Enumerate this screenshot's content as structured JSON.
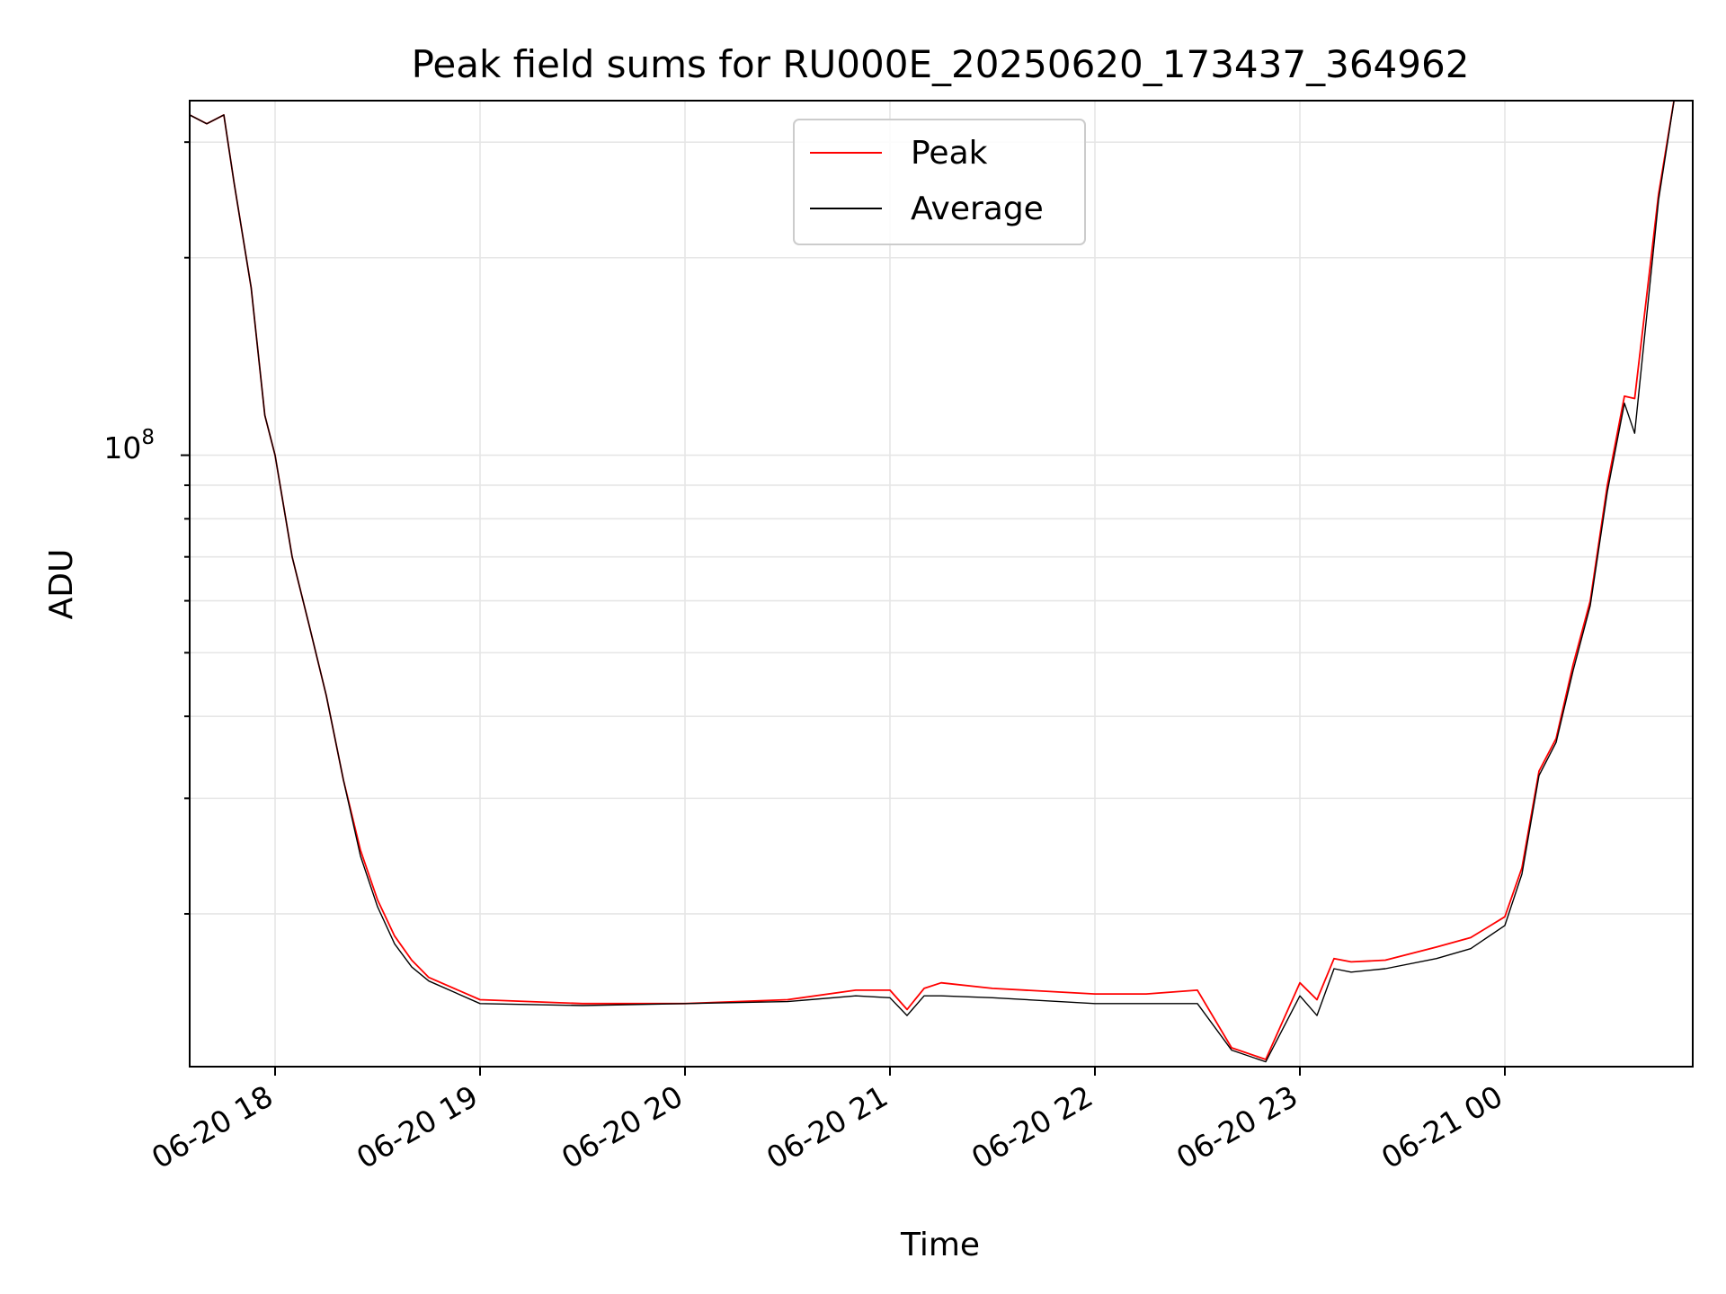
{
  "chart_data": {
    "type": "line",
    "title": "Peak field sums for RU000E_20250620_173437_364962",
    "xlabel": "Time",
    "ylabel": "ADU",
    "y_scale": "log",
    "y_tick_base": "10",
    "y_tick_exponent": "8",
    "ylim": [
      11700000,
      347000000
    ],
    "xlim": [
      "2025-06-20 17:35",
      "2025-06-21 00:55"
    ],
    "x_tick_labels": [
      "06-20 18",
      "06-20 19",
      "06-20 20",
      "06-20 21",
      "06-20 22",
      "06-20 23",
      "06-21 00"
    ],
    "x_tick_values": [
      "2025-06-20 18:00",
      "2025-06-20 19:00",
      "2025-06-20 20:00",
      "2025-06-20 21:00",
      "2025-06-20 22:00",
      "2025-06-20 23:00",
      "2025-06-21 00:00"
    ],
    "grid": true,
    "legend": "upper center",
    "series": [
      {
        "name": "Peak",
        "color": "#ff0000",
        "x": [
          "2025-06-20 17:35",
          "2025-06-20 17:40",
          "2025-06-20 17:45",
          "2025-06-20 17:48",
          "2025-06-20 17:53",
          "2025-06-20 17:57",
          "2025-06-20 18:00",
          "2025-06-20 18:05",
          "2025-06-20 18:10",
          "2025-06-20 18:15",
          "2025-06-20 18:20",
          "2025-06-20 18:25",
          "2025-06-20 18:30",
          "2025-06-20 18:35",
          "2025-06-20 18:40",
          "2025-06-20 18:45",
          "2025-06-20 19:00",
          "2025-06-20 19:30",
          "2025-06-20 20:00",
          "2025-06-20 20:30",
          "2025-06-20 20:50",
          "2025-06-20 21:00",
          "2025-06-20 21:05",
          "2025-06-20 21:10",
          "2025-06-20 21:15",
          "2025-06-20 21:30",
          "2025-06-20 22:00",
          "2025-06-20 22:15",
          "2025-06-20 22:30",
          "2025-06-20 22:40",
          "2025-06-20 22:50",
          "2025-06-20 23:00",
          "2025-06-20 23:05",
          "2025-06-20 23:10",
          "2025-06-20 23:15",
          "2025-06-20 23:25",
          "2025-06-20 23:40",
          "2025-06-20 23:50",
          "2025-06-21 00:00",
          "2025-06-21 00:05",
          "2025-06-21 00:10",
          "2025-06-21 00:15",
          "2025-06-21 00:20",
          "2025-06-21 00:25",
          "2025-06-21 00:30",
          "2025-06-21 00:35",
          "2025-06-21 00:38",
          "2025-06-21 00:45",
          "2025-06-21 00:50"
        ],
        "y": [
          330000000,
          320000000,
          330000000,
          260000000,
          180000000,
          115000000,
          100000000,
          70000000,
          55000000,
          43000000,
          32000000,
          25000000,
          21000000,
          18500000,
          17000000,
          16000000,
          14800000,
          14600000,
          14600000,
          14800000,
          15300000,
          15300000,
          14300000,
          15400000,
          15700000,
          15400000,
          15100000,
          15100000,
          15300000,
          12500000,
          12000000,
          15700000,
          14800000,
          17100000,
          16900000,
          17000000,
          17800000,
          18400000,
          19800000,
          23500000,
          33000000,
          37000000,
          48000000,
          60000000,
          90000000,
          123000000,
          122000000,
          250000000,
          360000000
        ]
      },
      {
        "name": "Average",
        "color": "#000000",
        "x": [
          "2025-06-20 17:35",
          "2025-06-20 17:40",
          "2025-06-20 17:45",
          "2025-06-20 17:48",
          "2025-06-20 17:53",
          "2025-06-20 17:57",
          "2025-06-20 18:00",
          "2025-06-20 18:05",
          "2025-06-20 18:10",
          "2025-06-20 18:15",
          "2025-06-20 18:20",
          "2025-06-20 18:25",
          "2025-06-20 18:30",
          "2025-06-20 18:35",
          "2025-06-20 18:40",
          "2025-06-20 18:45",
          "2025-06-20 19:00",
          "2025-06-20 19:30",
          "2025-06-20 20:00",
          "2025-06-20 20:30",
          "2025-06-20 20:50",
          "2025-06-20 21:00",
          "2025-06-20 21:05",
          "2025-06-20 21:10",
          "2025-06-20 21:15",
          "2025-06-20 21:30",
          "2025-06-20 22:00",
          "2025-06-20 22:15",
          "2025-06-20 22:30",
          "2025-06-20 22:40",
          "2025-06-20 22:50",
          "2025-06-20 23:00",
          "2025-06-20 23:05",
          "2025-06-20 23:10",
          "2025-06-20 23:15",
          "2025-06-20 23:25",
          "2025-06-20 23:40",
          "2025-06-20 23:50",
          "2025-06-21 00:00",
          "2025-06-21 00:05",
          "2025-06-21 00:10",
          "2025-06-21 00:15",
          "2025-06-21 00:20",
          "2025-06-21 00:25",
          "2025-06-21 00:30",
          "2025-06-21 00:35",
          "2025-06-21 00:38",
          "2025-06-21 00:45",
          "2025-06-21 00:50"
        ],
        "y": [
          330000000,
          320000000,
          330000000,
          260000000,
          180000000,
          115000000,
          100000000,
          70000000,
          55000000,
          43000000,
          32000000,
          24500000,
          20500000,
          18000000,
          16600000,
          15800000,
          14600000,
          14500000,
          14600000,
          14700000,
          15000000,
          14900000,
          14000000,
          15000000,
          15000000,
          14900000,
          14600000,
          14600000,
          14600000,
          12400000,
          11900000,
          15000000,
          14000000,
          16500000,
          16300000,
          16500000,
          17100000,
          17700000,
          19200000,
          23000000,
          32500000,
          36500000,
          47000000,
          59000000,
          88000000,
          120000000,
          108000000,
          245000000,
          360000000
        ]
      }
    ]
  }
}
